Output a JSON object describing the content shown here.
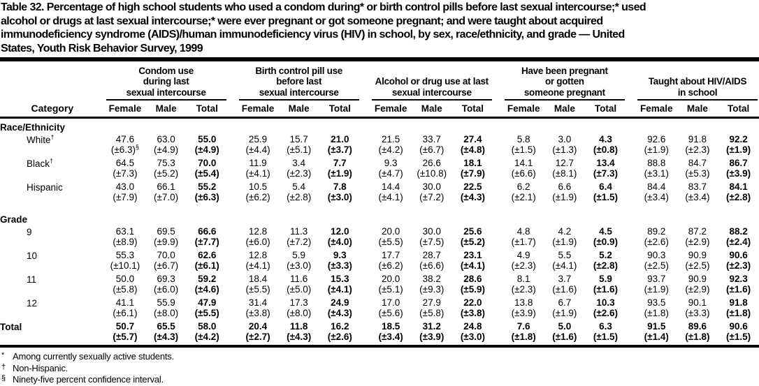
{
  "title": {
    "lines": [
      "Table 32. Percentage of high school students who used a condom during* or birth control pills before last sexual intercourse;* used",
      "alcohol or drugs at last sexual intercourse;* were ever pregnant or got someone pregnant; and were taught about acquired",
      "immunodeficiency syndrome (AIDS)/human immunodeficiency virus (HIV) in school, by sex, race/ethnicity, and grade — United",
      "States, Youth Risk Behavior Survey, 1999"
    ]
  },
  "table": {
    "category_header": "Category",
    "groups": [
      {
        "name": "condom-use",
        "lines": [
          "Condom use",
          "during last",
          "sexual intercourse"
        ]
      },
      {
        "name": "birth-control-pill-use",
        "lines": [
          "Birth control pill use",
          "before last",
          "sexual intercourse"
        ]
      },
      {
        "name": "alcohol-drug-use",
        "lines": [
          "Alcohol or drug use at last",
          "sexual intercourse"
        ]
      },
      {
        "name": "pregnancy",
        "lines": [
          "Have been pregnant",
          "or gotten",
          "someone pregnant"
        ]
      },
      {
        "name": "hiv-aids-education",
        "lines": [
          "Taught about HIV/AIDS",
          "in school"
        ]
      }
    ],
    "subcolumns": [
      "Female",
      "Male",
      "Total"
    ],
    "sections": [
      {
        "heading": "Race/Ethnicity",
        "rows": [
          {
            "label": "White",
            "label_sup": "†",
            "values": [
              "47.6",
              "63.0",
              "55.0",
              "25.9",
              "15.7",
              "21.0",
              "21.5",
              "33.7",
              "27.4",
              "5.8",
              "3.0",
              "4.3",
              "92.6",
              "91.8",
              "92.2"
            ],
            "cis": [
              "(±6.3)",
              "(±4.9)",
              "(±4.9)",
              "(±4.4)",
              "(±5.1)",
              "(±3.7)",
              "(±4.2)",
              "(±6.7)",
              "(±4.8)",
              "(±1.5)",
              "(±1.3)",
              "(±0.8)",
              "(±1.9)",
              "(±2.3)",
              "(±1.9)"
            ],
            "ci_sups": {
              "0": "§"
            }
          },
          {
            "label": "Black",
            "label_sup": "†",
            "values": [
              "64.5",
              "75.3",
              "70.0",
              "11.9",
              "3.4",
              "7.7",
              "9.3",
              "26.6",
              "18.1",
              "14.1",
              "12.7",
              "13.4",
              "88.8",
              "84.7",
              "86.7"
            ],
            "cis": [
              "(±7.3)",
              "(±5.2)",
              "(±5.4)",
              "(±4.1)",
              "(±2.3)",
              "(±1.9)",
              "(±4.7)",
              "(±10.8)",
              "(±7.9)",
              "(±6.6)",
              "(±8.1)",
              "(±7.3)",
              "(±3.1)",
              "(±5.3)",
              "(±3.9)"
            ]
          },
          {
            "label": "Hispanic",
            "values": [
              "43.0",
              "66.1",
              "55.2",
              "10.5",
              "5.4",
              "7.8",
              "14.4",
              "30.0",
              "22.5",
              "6.2",
              "6.6",
              "6.4",
              "84.4",
              "83.7",
              "84.1"
            ],
            "cis": [
              "(±7.9)",
              "(±7.0)",
              "(±6.3)",
              "(±6.2)",
              "(±2.8)",
              "(±3.0)",
              "(±4.1)",
              "(±7.2)",
              "(±4.3)",
              "(±2.1)",
              "(±1.9)",
              "(±1.5)",
              "(±3.4)",
              "(±3.4)",
              "(±2.8)"
            ]
          }
        ]
      },
      {
        "heading": "Grade",
        "rows": [
          {
            "label": "9",
            "values": [
              "63.1",
              "69.5",
              "66.6",
              "12.8",
              "11.3",
              "12.0",
              "20.0",
              "30.0",
              "25.6",
              "4.8",
              "4.2",
              "4.5",
              "89.2",
              "87.2",
              "88.2"
            ],
            "cis": [
              "(±8.9)",
              "(±9.9)",
              "(±7.7)",
              "(±6.0)",
              "(±7.2)",
              "(±4.0)",
              "(±5.5)",
              "(±7.5)",
              "(±5.2)",
              "(±1.7)",
              "(±1.9)",
              "(±0.9)",
              "(±2.6)",
              "(±2.9)",
              "(±2.4)"
            ]
          },
          {
            "label": "10",
            "values": [
              "55.3",
              "70.0",
              "62.6",
              "12.8",
              "5.9",
              "9.3",
              "17.7",
              "28.7",
              "23.1",
              "4.9",
              "5.5",
              "5.2",
              "90.3",
              "90.9",
              "90.6"
            ],
            "cis": [
              "(±10.1)",
              "(±6.7)",
              "(±6.1)",
              "(±4.1)",
              "(±3.0)",
              "(±3.3)",
              "(±6.2)",
              "(±6.6)",
              "(±4.1)",
              "(±2.3)",
              "(±4.1)",
              "(±2.8)",
              "(±2.5)",
              "(±2.5)",
              "(±2.3)"
            ]
          },
          {
            "label": "11",
            "values": [
              "50.0",
              "69.3",
              "59.2",
              "18.4",
              "11.6",
              "15.3",
              "20.0",
              "38.2",
              "28.6",
              "8.1",
              "3.7",
              "5.9",
              "93.7",
              "90.9",
              "92.3"
            ],
            "cis": [
              "(±5.8)",
              "(±6.0)",
              "(±4.6)",
              "(±5.5)",
              "(±5.0)",
              "(±4.1)",
              "(±5.1)",
              "(±9.3)",
              "(±5.9)",
              "(±2.3)",
              "(±1.6)",
              "(±1.6)",
              "(±1.9)",
              "(±2.9)",
              "(±1.6)"
            ]
          },
          {
            "label": "12",
            "values": [
              "41.1",
              "55.9",
              "47.9",
              "31.4",
              "17.3",
              "24.9",
              "17.0",
              "27.9",
              "22.0",
              "13.8",
              "6.7",
              "10.3",
              "93.5",
              "90.1",
              "91.8"
            ],
            "cis": [
              "(±6.1)",
              "(±8.0)",
              "(±5.5)",
              "(±3.8)",
              "(±8.0)",
              "(±4.3)",
              "(±5.6)",
              "(±5.8)",
              "(±3.8)",
              "(±3.9)",
              "(±1.9)",
              "(±2.6)",
              "(±1.8)",
              "(±3.3)",
              "(±1.8)"
            ]
          }
        ]
      }
    ],
    "total_row": {
      "label": "Total",
      "values": [
        "50.7",
        "65.5",
        "58.0",
        "20.4",
        "11.8",
        "16.2",
        "18.5",
        "31.2",
        "24.8",
        "7.6",
        "5.0",
        "6.3",
        "91.5",
        "89.6",
        "90.6"
      ],
      "cis": [
        "(±5.7)",
        "(±4.3)",
        "(±4.2)",
        "(±2.7)",
        "(±4.3)",
        "(±2.6)",
        "(±3.4)",
        "(±3.9)",
        "(±3.0)",
        "(±1.8)",
        "(±1.6)",
        "(±1.5)",
        "(±1.4)",
        "(±1.8)",
        "(±1.5)"
      ]
    }
  },
  "footnotes": [
    {
      "marker": "*",
      "text": "Among currently sexually active students."
    },
    {
      "marker": "†",
      "text": "Non-Hispanic."
    },
    {
      "marker": "§",
      "text": "Ninety-five percent confidence interval."
    }
  ]
}
